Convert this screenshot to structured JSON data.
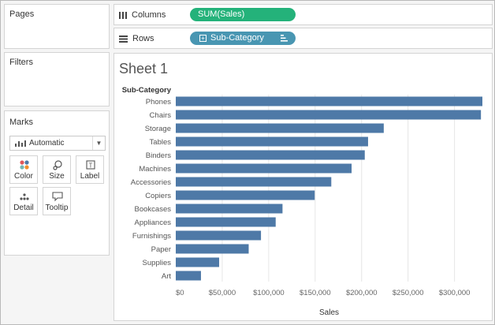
{
  "pages": {
    "title": "Pages"
  },
  "filters": {
    "title": "Filters"
  },
  "marks": {
    "title": "Marks",
    "mark_type": "Automatic",
    "cards": [
      {
        "label": "Color",
        "icon": "color-icon"
      },
      {
        "label": "Size",
        "icon": "size-icon"
      },
      {
        "label": "Label",
        "icon": "label-icon"
      },
      {
        "label": "Detail",
        "icon": "detail-icon"
      },
      {
        "label": "Tooltip",
        "icon": "tooltip-icon"
      }
    ]
  },
  "shelves": {
    "columns": {
      "label": "Columns",
      "pill": "SUM(Sales)"
    },
    "rows": {
      "label": "Rows",
      "pill": "Sub-Category"
    }
  },
  "sheet": {
    "title": "Sheet 1"
  },
  "colors": {
    "bar": "#4e79a7",
    "grid": "#e6e6e6",
    "columns_pill": "#24b27a",
    "rows_pill": "#4996b2"
  },
  "chart_data": {
    "type": "bar",
    "orientation": "horizontal",
    "title": "Sheet 1",
    "row_header": "Sub-Category",
    "xlabel": "Sales",
    "ylabel": "Sub-Category",
    "categories": [
      "Phones",
      "Chairs",
      "Storage",
      "Tables",
      "Binders",
      "Machines",
      "Accessories",
      "Copiers",
      "Bookcases",
      "Appliances",
      "Furnishings",
      "Paper",
      "Supplies",
      "Art"
    ],
    "values": [
      330007,
      328449,
      223844,
      206966,
      203413,
      189239,
      167380,
      149528,
      114880,
      107532,
      91705,
      78479,
      46674,
      27119
    ],
    "xlim": [
      0,
      330007
    ],
    "ticks": [
      0,
      50000,
      100000,
      150000,
      200000,
      250000,
      300000
    ],
    "tick_labels": [
      "$0",
      "$50,000",
      "$100,000",
      "$150,000",
      "$200,000",
      "$250,000",
      "$300,000"
    ],
    "grid": true
  }
}
